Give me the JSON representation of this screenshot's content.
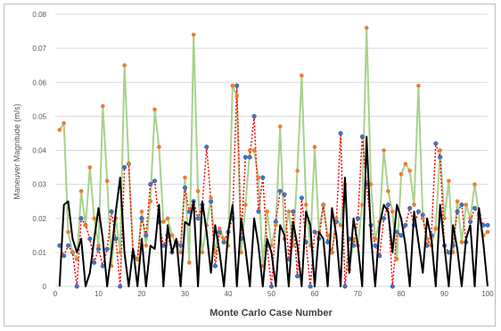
{
  "chart_data": {
    "type": "line",
    "xlabel": "Monte Carlo Case Number",
    "ylabel": "Maneuver Magnitude (m/s)",
    "xlim": [
      0,
      100
    ],
    "ylim": [
      0,
      0.08
    ],
    "x_ticks": [
      0,
      10,
      20,
      30,
      40,
      50,
      60,
      70,
      80,
      90,
      100
    ],
    "y_ticks": [
      0,
      0.01,
      0.02,
      0.03,
      0.04,
      0.05,
      0.06,
      0.07,
      0.08
    ],
    "y_tick_labels": [
      "0",
      "0.01",
      "0.02",
      "0.03",
      "0.04",
      "0.05",
      "0.06",
      "0.07",
      "0.08"
    ],
    "grid": true,
    "series": [
      {
        "style": "green-solid-orange-markers",
        "line_color": "#a9d18e",
        "marker_color": "#ed7d31",
        "x": [
          1,
          2,
          3,
          4,
          5,
          6,
          7,
          8,
          9,
          10,
          11,
          12,
          13,
          14,
          15,
          16,
          17,
          18,
          19,
          20,
          21,
          22,
          23,
          24,
          25,
          26,
          27,
          28,
          29,
          30,
          31,
          32,
          33,
          34,
          35,
          36,
          37,
          38,
          39,
          40,
          41,
          42,
          43,
          44,
          45,
          46,
          47,
          48,
          49,
          50,
          51,
          52,
          53,
          54,
          55,
          56,
          57,
          58,
          59,
          60,
          61,
          62,
          63,
          64,
          65,
          66,
          67,
          68,
          69,
          70,
          71,
          72,
          73,
          74,
          75,
          76,
          77,
          78,
          79,
          80,
          81,
          82,
          83,
          84,
          85,
          86,
          87,
          88,
          89,
          90,
          91,
          92,
          93,
          94,
          95,
          96,
          97,
          98,
          99,
          100
        ],
        "values": [
          0.046,
          0.048,
          0.016,
          0.01,
          0.008,
          0.028,
          0.018,
          0.035,
          0.02,
          0.012,
          0.053,
          0.031,
          0.006,
          0.02,
          0.01,
          0.065,
          0.036,
          0.01,
          0.008,
          0.022,
          0.012,
          0.025,
          0.052,
          0.041,
          0.019,
          0.02,
          0.015,
          0.012,
          0.01,
          0.032,
          0.007,
          0.074,
          0.028,
          0.01,
          0.018,
          0.026,
          0.01,
          0.017,
          0.014,
          0.012,
          0.059,
          0.056,
          0.01,
          0.024,
          0.04,
          0.04,
          0.032,
          0.006,
          0.022,
          0.012,
          0.018,
          0.047,
          0.014,
          0.022,
          0.012,
          0.034,
          0.062,
          0.024,
          0.012,
          0.041,
          0.016,
          0.024,
          0.015,
          0.01,
          0.02,
          0.018,
          0.03,
          0.005,
          0.014,
          0.012,
          0.024,
          0.076,
          0.03,
          0.014,
          0.019,
          0.04,
          0.028,
          0.022,
          0.008,
          0.033,
          0.036,
          0.034,
          0.024,
          0.059,
          0.02,
          0.014,
          0.012,
          0.017,
          0.04,
          0.02,
          0.031,
          0.01,
          0.025,
          0.013,
          0.024,
          0.02,
          0.03,
          0.021,
          0.015,
          0.016
        ]
      },
      {
        "style": "red-dotted-blue-markers",
        "line_color": "#ff0000",
        "marker_color": "#4472c4",
        "x": [
          1,
          2,
          3,
          4,
          5,
          6,
          7,
          8,
          9,
          10,
          11,
          12,
          13,
          14,
          15,
          16,
          17,
          18,
          19,
          20,
          21,
          22,
          23,
          24,
          25,
          26,
          27,
          28,
          29,
          30,
          31,
          32,
          33,
          34,
          35,
          36,
          37,
          38,
          39,
          40,
          41,
          42,
          43,
          44,
          45,
          46,
          47,
          48,
          49,
          50,
          51,
          52,
          53,
          54,
          55,
          56,
          57,
          58,
          59,
          60,
          61,
          62,
          63,
          64,
          65,
          66,
          67,
          68,
          69,
          70,
          71,
          72,
          73,
          74,
          75,
          76,
          77,
          78,
          79,
          80,
          81,
          82,
          83,
          84,
          85,
          86,
          87,
          88,
          89,
          90,
          91,
          92,
          93,
          94,
          95,
          96,
          97,
          98,
          99,
          100
        ],
        "values": [
          0.012,
          0.009,
          0.012,
          0.01,
          0.0,
          0.02,
          0.018,
          0.014,
          0.007,
          0.011,
          0.006,
          0.011,
          0.022,
          0.014,
          0.0,
          0.035,
          0.036,
          0.009,
          0.008,
          0.02,
          0.015,
          0.03,
          0.031,
          0.019,
          0.012,
          0.015,
          0.01,
          0.013,
          0.012,
          0.029,
          0.022,
          0.025,
          0.02,
          0.024,
          0.041,
          0.025,
          0.006,
          0.016,
          0.013,
          0.016,
          0.02,
          0.059,
          0.014,
          0.038,
          0.038,
          0.05,
          0.022,
          0.032,
          0.012,
          0.0,
          0.019,
          0.028,
          0.027,
          0.008,
          0.022,
          0.003,
          0.026,
          0.013,
          0.0,
          0.016,
          0.014,
          0.024,
          0.013,
          0.01,
          0.019,
          0.045,
          0.0,
          0.014,
          0.012,
          0.02,
          0.044,
          0.03,
          0.018,
          0.012,
          0.009,
          0.02,
          0.024,
          0.0,
          0.016,
          0.015,
          0.018,
          0.023,
          0.018,
          0.022,
          0.021,
          0.012,
          0.015,
          0.042,
          0.038,
          0.012,
          0.01,
          0.012,
          0.022,
          0.024,
          0.013,
          0.019,
          0.023,
          0.021,
          0.018,
          0.018
        ]
      },
      {
        "style": "black-solid",
        "line_color": "#000000",
        "x": [
          1,
          2,
          3,
          4,
          5,
          6,
          7,
          8,
          9,
          10,
          11,
          12,
          13,
          14,
          15,
          16,
          17,
          18,
          19,
          20,
          21,
          22,
          23,
          24,
          25,
          26,
          27,
          28,
          29,
          30,
          31,
          32,
          33,
          34,
          35,
          36,
          37,
          38,
          39,
          40,
          41,
          42,
          43,
          44,
          45,
          46,
          47,
          48,
          49,
          50,
          51,
          52,
          53,
          54,
          55,
          56,
          57,
          58,
          59,
          60,
          61,
          62,
          63,
          64,
          65,
          66,
          67,
          68,
          69,
          70,
          71,
          72,
          73,
          74,
          75,
          76,
          77,
          78,
          79,
          80,
          81,
          82,
          83,
          84,
          85,
          86,
          87,
          88,
          89,
          90,
          91,
          92,
          93,
          94,
          95,
          96,
          97,
          98,
          99,
          100
        ],
        "values": [
          0.0,
          0.024,
          0.025,
          0.014,
          0.01,
          0.014,
          0.0,
          0.004,
          0.014,
          0.023,
          0.014,
          0.0,
          0.01,
          0.022,
          0.032,
          0.01,
          0.0,
          0.011,
          0.0,
          0.014,
          0.0,
          0.012,
          0.011,
          0.024,
          0.0,
          0.018,
          0.01,
          0.014,
          0.0,
          0.019,
          0.018,
          0.025,
          0.0,
          0.025,
          0.016,
          0.004,
          0.018,
          0.01,
          0.0,
          0.016,
          0.024,
          0.0,
          0.02,
          0.011,
          0.0,
          0.02,
          0.012,
          0.0,
          0.014,
          0.01,
          0.0,
          0.018,
          0.015,
          0.0,
          0.019,
          0.012,
          0.0,
          0.022,
          0.018,
          0.0,
          0.016,
          0.014,
          0.0,
          0.023,
          0.015,
          0.0,
          0.032,
          0.004,
          0.02,
          0.012,
          0.0,
          0.044,
          0.015,
          0.0,
          0.018,
          0.024,
          0.022,
          0.01,
          0.024,
          0.02,
          0.012,
          0.0,
          0.022,
          0.013,
          0.004,
          0.02,
          0.014,
          0.0,
          0.024,
          0.012,
          0.0,
          0.018,
          0.011,
          0.0,
          0.014,
          0.018,
          0.0,
          0.023,
          0.013,
          0.0
        ]
      }
    ]
  }
}
